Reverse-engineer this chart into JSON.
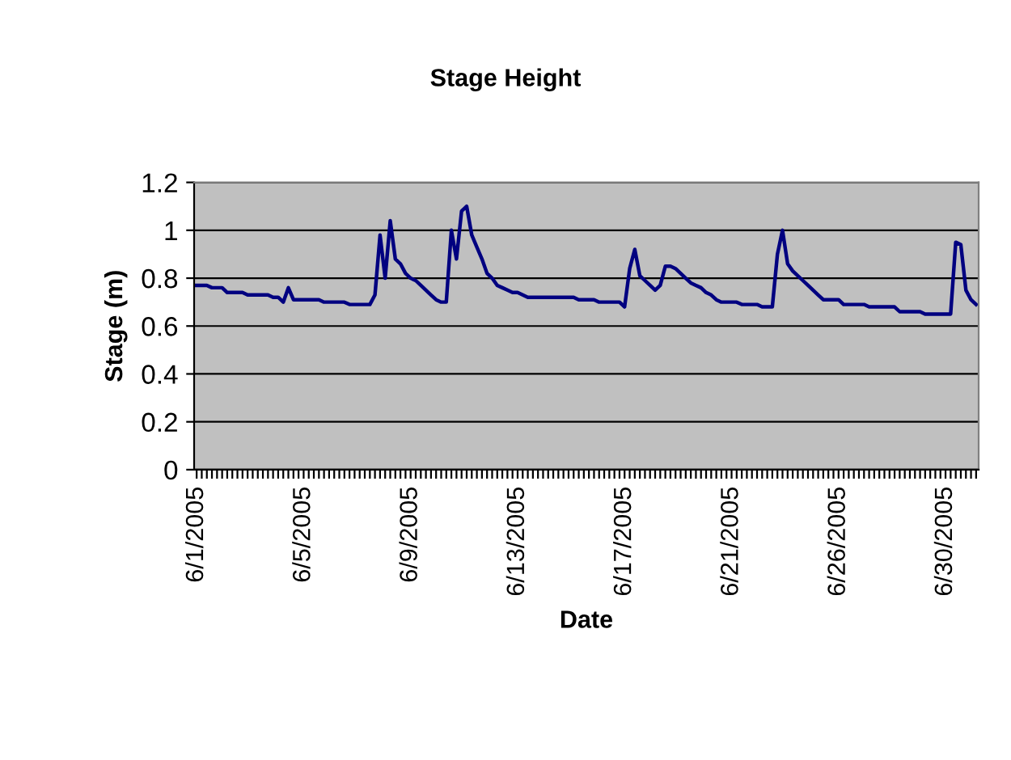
{
  "chart_data": {
    "type": "line",
    "title": "Stage Height",
    "xlabel": "Date",
    "ylabel": "Stage (m)",
    "categories": [
      "6/1/2005",
      null,
      null,
      null,
      null,
      null,
      null,
      null,
      null,
      null,
      null,
      null,
      null,
      null,
      null,
      null,
      null,
      null,
      null,
      null,
      null,
      "6/5/2005",
      null,
      null,
      null,
      null,
      null,
      null,
      null,
      null,
      null,
      null,
      null,
      null,
      null,
      null,
      null,
      null,
      null,
      null,
      null,
      null,
      "6/9/2005",
      null,
      null,
      null,
      null,
      null,
      null,
      null,
      null,
      null,
      null,
      null,
      null,
      null,
      null,
      null,
      null,
      null,
      null,
      null,
      null,
      "6/13/2005",
      null,
      null,
      null,
      null,
      null,
      null,
      null,
      null,
      null,
      null,
      null,
      null,
      null,
      null,
      null,
      null,
      null,
      null,
      null,
      null,
      "6/17/2005",
      null,
      null,
      null,
      null,
      null,
      null,
      null,
      null,
      null,
      null,
      null,
      null,
      null,
      null,
      null,
      null,
      null,
      null,
      null,
      null,
      "6/21/2005",
      null,
      null,
      null,
      null,
      null,
      null,
      null,
      null,
      null,
      null,
      null,
      null,
      null,
      null,
      null,
      null,
      null,
      null,
      null,
      null,
      "6/26/2005",
      null,
      null,
      null,
      null,
      null,
      null,
      null,
      null,
      null,
      null,
      null,
      null,
      null,
      null,
      null,
      null,
      null,
      null,
      null,
      null,
      "6/30/2005",
      null,
      null,
      null,
      null,
      null,
      null
    ],
    "series": [
      {
        "color": "#000080",
        "values": [
          0.77,
          0.77,
          0.77,
          0.76,
          0.76,
          0.76,
          0.74,
          0.74,
          0.74,
          0.74,
          0.73,
          0.73,
          0.73,
          0.73,
          0.73,
          0.72,
          0.72,
          0.7,
          0.76,
          0.71,
          0.71,
          0.71,
          0.71,
          0.71,
          0.71,
          0.7,
          0.7,
          0.7,
          0.7,
          0.7,
          0.69,
          0.69,
          0.69,
          0.69,
          0.69,
          0.73,
          0.98,
          0.8,
          1.04,
          0.88,
          0.86,
          0.82,
          0.8,
          0.79,
          0.77,
          0.75,
          0.73,
          0.71,
          0.7,
          0.7,
          1.0,
          0.88,
          1.08,
          1.1,
          0.98,
          0.93,
          0.88,
          0.82,
          0.8,
          0.77,
          0.76,
          0.75,
          0.74,
          0.74,
          0.73,
          0.72,
          0.72,
          0.72,
          0.72,
          0.72,
          0.72,
          0.72,
          0.72,
          0.72,
          0.72,
          0.71,
          0.71,
          0.71,
          0.71,
          0.7,
          0.7,
          0.7,
          0.7,
          0.7,
          0.68,
          0.84,
          0.92,
          0.81,
          0.79,
          0.77,
          0.75,
          0.77,
          0.85,
          0.85,
          0.84,
          0.82,
          0.8,
          0.78,
          0.77,
          0.76,
          0.74,
          0.73,
          0.71,
          0.7,
          0.7,
          0.7,
          0.7,
          0.69,
          0.69,
          0.69,
          0.69,
          0.68,
          0.68,
          0.68,
          0.9,
          1.0,
          0.86,
          0.83,
          0.81,
          0.79,
          0.77,
          0.75,
          0.73,
          0.71,
          0.71,
          0.71,
          0.71,
          0.69,
          0.69,
          0.69,
          0.69,
          0.69,
          0.68,
          0.68,
          0.68,
          0.68,
          0.68,
          0.68,
          0.66,
          0.66,
          0.66,
          0.66,
          0.66,
          0.65,
          0.65,
          0.65,
          0.65,
          0.65,
          0.65,
          0.95,
          0.94,
          0.75,
          0.71,
          0.69
        ]
      }
    ],
    "ylim": [
      0,
      1.2
    ],
    "yticks": [
      0,
      {
        "value": 0.2,
        "label": "0.2"
      },
      {
        "value": 0.4,
        "label": "0.4"
      },
      {
        "value": 0.6,
        "label": "0.6"
      },
      {
        "value": 0.8,
        "label": "0.8"
      },
      1,
      {
        "value": 1.2,
        "label": "1.2"
      }
    ],
    "grid": "y",
    "legend": false,
    "marker": "none",
    "line_style": "solid"
  }
}
